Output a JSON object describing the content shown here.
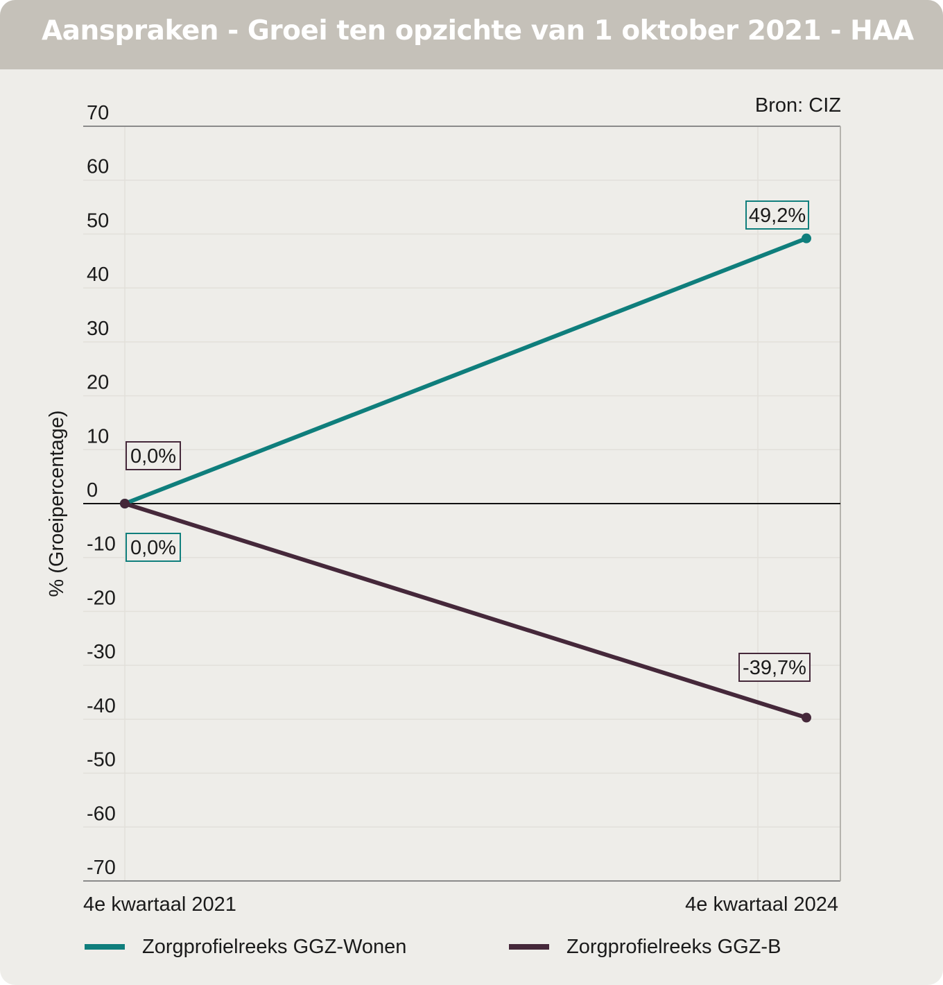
{
  "title": "Aanspraken - Groei ten opzichte van 1 oktober 2021 - HAA",
  "source": "Bron: CIZ",
  "chart_data": {
    "type": "line",
    "title": "Aanspraken - Groei ten opzichte van 1 oktober 2021 - HAA",
    "ylabel": "% (Groeipercentage)",
    "xlabel": "",
    "x": [
      "4e kwartaal 2021",
      "4e kwartaal 2024"
    ],
    "ylim": [
      -70,
      70
    ],
    "yticks": [
      70,
      60,
      50,
      40,
      30,
      20,
      10,
      0,
      -10,
      -20,
      -30,
      -40,
      -50,
      -60,
      -70
    ],
    "grid": true,
    "legend_position": "bottom",
    "series": [
      {
        "name": "Zorgprofielreeks GGZ-Wonen",
        "color": "#0f7e7c",
        "values": [
          0.0,
          49.2
        ],
        "labels": [
          "0,0%",
          "49,2%"
        ]
      },
      {
        "name": "Zorgprofielreeks GGZ-B",
        "color": "#45283a",
        "values": [
          0.0,
          -39.7
        ],
        "labels": [
          "0,0%",
          "-39,7%"
        ]
      }
    ]
  }
}
